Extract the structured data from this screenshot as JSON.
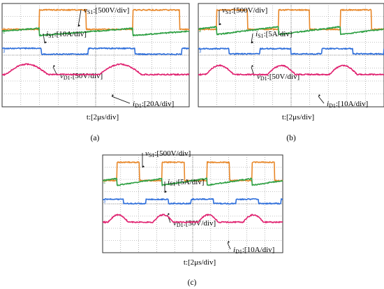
{
  "chart_data": [
    {
      "type": "line",
      "caption": "(a)",
      "time_scale": "t:[2μs/div]",
      "divisions": {
        "x": 10,
        "y": 8
      },
      "series": [
        {
          "name": "vS1",
          "sub": "S1",
          "scale": ":[500V/div]",
          "color": "#e8882a",
          "kind": "square",
          "period": 5.0,
          "duty": 0.5,
          "phase": 2.0,
          "base_div": 0.5,
          "swing_div": 1.5,
          "marker": "1"
        },
        {
          "name": "iS1",
          "sub": "S1",
          "scale": ":[10A/div]",
          "color": "#2ea043",
          "kind": "ramp",
          "period": 5.0,
          "phase": 2.0,
          "base_div": 2.2,
          "swing_div": 0.55,
          "marker": "2"
        },
        {
          "name": "vD1",
          "sub": "D1",
          "scale": ":[50V/div]",
          "color": "#2f6fdb",
          "kind": "square",
          "period": 5.0,
          "duty": 0.5,
          "phase": -0.4,
          "base_div": 3.7,
          "swing_div": 0.45,
          "marker": "3"
        },
        {
          "name": "iD1",
          "sub": "D1",
          "scale": ":[20A/div]",
          "color": "#e0206f",
          "kind": "hump",
          "period": 5.0,
          "phase": 0.2,
          "base_div": 5.5,
          "swing_div": 0.8,
          "marker": "4"
        }
      ]
    },
    {
      "type": "line",
      "caption": "(b)",
      "time_scale": "t:[2μs/div]",
      "divisions": {
        "x": 10,
        "y": 8
      },
      "series": [
        {
          "name": "vS1",
          "sub": "S1",
          "scale": ":[500V/div]",
          "color": "#e8882a",
          "kind": "square",
          "period": 3.33,
          "duty": 0.5,
          "phase": 1.0,
          "base_div": 0.5,
          "swing_div": 1.5,
          "marker": "1"
        },
        {
          "name": "iS1",
          "sub": "S1",
          "scale": ":[5A/div]",
          "color": "#2ea043",
          "kind": "ramp",
          "period": 3.33,
          "phase": 1.0,
          "base_div": 2.1,
          "swing_div": 0.6,
          "marker": "2"
        },
        {
          "name": "vD1",
          "sub": "D1",
          "scale": ":[50V/div]",
          "color": "#2f6fdb",
          "kind": "square",
          "period": 3.33,
          "duty": 0.5,
          "phase": 0.0,
          "base_div": 3.7,
          "swing_div": 0.4,
          "marker": "3"
        },
        {
          "name": "iD1",
          "sub": "D1",
          "scale": ":[10A/div]",
          "color": "#e0206f",
          "kind": "hump",
          "period": 3.33,
          "phase": 0.4,
          "base_div": 5.5,
          "swing_div": 0.7,
          "marker": "4"
        }
      ]
    },
    {
      "type": "line",
      "caption": "(c)",
      "time_scale": "t:[2μs/div]",
      "divisions": {
        "x": 10,
        "y": 8
      },
      "series": [
        {
          "name": "vS1",
          "sub": "S1",
          "scale": ":[500V/div]",
          "color": "#e8882a",
          "kind": "square",
          "period": 2.5,
          "duty": 0.5,
          "phase": 0.8,
          "base_div": 0.6,
          "swing_div": 1.5,
          "marker": "1"
        },
        {
          "name": "iS1",
          "sub": "S1",
          "scale": ":[5A/div]",
          "color": "#2ea043",
          "kind": "ramp",
          "period": 2.5,
          "phase": 0.8,
          "base_div": 2.2,
          "swing_div": 0.55,
          "marker": "2"
        },
        {
          "name": "vD1",
          "sub": "D1",
          "scale": ":[50V/div]",
          "color": "#2f6fdb",
          "kind": "square",
          "period": 2.5,
          "duty": 0.5,
          "phase": -0.1,
          "base_div": 3.8,
          "swing_div": 0.35,
          "marker": "3"
        },
        {
          "name": "iD1",
          "sub": "D1",
          "scale": ":[10A/div]",
          "color": "#e0206f",
          "kind": "hump",
          "period": 2.5,
          "phase": 0.3,
          "base_div": 5.5,
          "swing_div": 0.6,
          "marker": "4"
        }
      ]
    }
  ]
}
